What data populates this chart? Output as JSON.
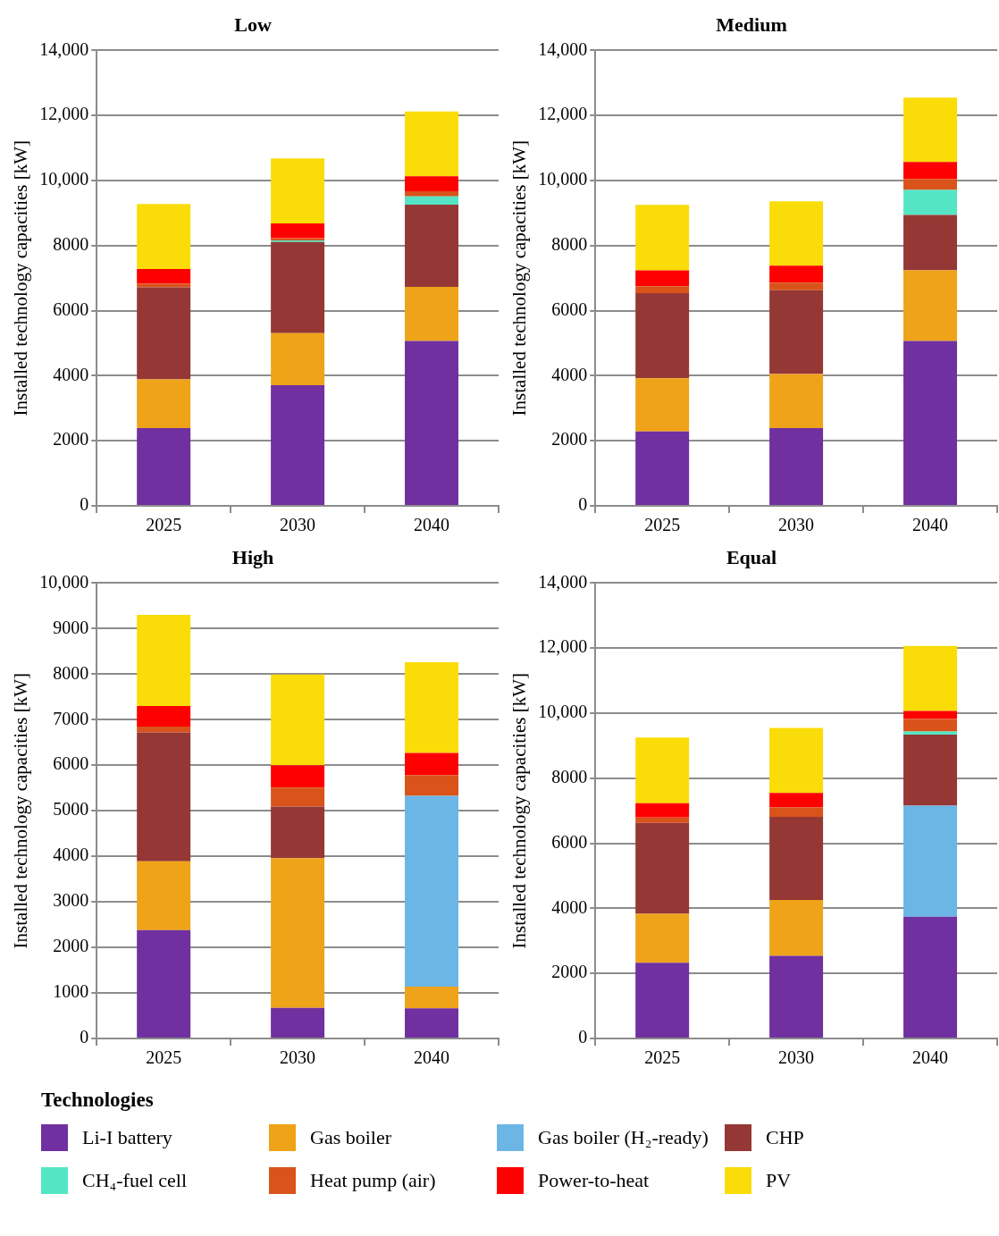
{
  "chart_data": [
    {
      "type": "bar",
      "title": "Low",
      "ylabel": "Installed technology capacities [kW]",
      "categories": [
        "2025",
        "2030",
        "2040"
      ],
      "stacked": true,
      "grid": "y",
      "legend": "bottom",
      "legend_title": "Technologies",
      "ylim": [
        0,
        14000
      ],
      "yticks": [
        0,
        2000,
        4000,
        6000,
        8000,
        {
          "value": 10000,
          "label": "10,000"
        },
        {
          "value": 12000,
          "label": "12,000"
        },
        {
          "value": 14000,
          "label": "14,000"
        }
      ],
      "series": [
        {
          "name": "Li-I battery",
          "color": "#7030a0",
          "values": [
            2390,
            3710,
            5070
          ]
        },
        {
          "name": "Gas boiler",
          "color": "#efa318",
          "values": [
            1500,
            1600,
            1660
          ]
        },
        {
          "name": "Gas boiler (H₂-ready)",
          "color": "#6cb6e6",
          "values": [
            0,
            0,
            0
          ]
        },
        {
          "name": "CHP",
          "color": "#953735",
          "values": [
            2830,
            2800,
            2530
          ]
        },
        {
          "name": "CH₄-fuel cell",
          "color": "#54e6c4",
          "values": [
            0,
            50,
            250
          ]
        },
        {
          "name": "Heat pump (air)",
          "color": "#d9531a",
          "values": [
            110,
            70,
            160
          ]
        },
        {
          "name": "Power-to-heat",
          "color": "#ff0000",
          "values": [
            450,
            450,
            460
          ]
        },
        {
          "name": "PV",
          "color": "#fadc08",
          "values": [
            2000,
            2000,
            1990
          ]
        }
      ]
    },
    {
      "type": "bar",
      "title": "Medium",
      "ylabel": "Installed technology capacities [kW]",
      "categories": [
        "2025",
        "2030",
        "2040"
      ],
      "stacked": true,
      "grid": "y",
      "ylim": [
        0,
        14000
      ],
      "yticks": [
        0,
        2000,
        4000,
        6000,
        8000,
        {
          "value": 10000,
          "label": "10,000"
        },
        {
          "value": 12000,
          "label": "12,000"
        },
        {
          "value": 14000,
          "label": "14,000"
        }
      ],
      "series": [
        {
          "color": "#7030a0",
          "values": [
            2290,
            2390,
            5070
          ]
        },
        {
          "color": "#efa318",
          "values": [
            1630,
            1660,
            2170
          ]
        },
        {
          "color": "#6cb6e6",
          "values": [
            0,
            0,
            0
          ]
        },
        {
          "color": "#953735",
          "values": [
            2620,
            2580,
            1700
          ]
        },
        {
          "color": "#54e6c4",
          "values": [
            0,
            0,
            770
          ]
        },
        {
          "color": "#d9531a",
          "values": [
            210,
            230,
            340
          ]
        },
        {
          "color": "#ff0000",
          "values": [
            490,
            520,
            520
          ]
        },
        {
          "color": "#fadc08",
          "values": [
            2010,
            1980,
            1980
          ]
        }
      ]
    },
    {
      "type": "bar",
      "title": "High",
      "ylabel": "Installed technology capacities [kW]",
      "categories": [
        "2025",
        "2030",
        "2040"
      ],
      "stacked": true,
      "grid": "y",
      "ylim": [
        0,
        10000
      ],
      "yticks": [
        0,
        1000,
        2000,
        3000,
        4000,
        5000,
        6000,
        7000,
        8000,
        9000,
        {
          "value": 10000,
          "label": "10,000"
        }
      ],
      "series": [
        {
          "color": "#7030a0",
          "values": [
            2380,
            670,
            660
          ]
        },
        {
          "color": "#efa318",
          "values": [
            1510,
            3290,
            480
          ]
        },
        {
          "color": "#6cb6e6",
          "values": [
            0,
            0,
            4190
          ]
        },
        {
          "color": "#953735",
          "values": [
            2830,
            1130,
            0
          ]
        },
        {
          "color": "#54e6c4",
          "values": [
            0,
            0,
            0
          ]
        },
        {
          "color": "#d9531a",
          "values": [
            130,
            420,
            450
          ]
        },
        {
          "color": "#ff0000",
          "values": [
            450,
            490,
            490
          ]
        },
        {
          "color": "#fadc08",
          "values": [
            2000,
            1990,
            1990
          ]
        }
      ]
    },
    {
      "type": "bar",
      "title": "Equal",
      "ylabel": "Installed technology capacities [kW]",
      "categories": [
        "2025",
        "2030",
        "2040"
      ],
      "stacked": true,
      "grid": "y",
      "ylim": [
        0,
        14000
      ],
      "yticks": [
        0,
        2000,
        4000,
        6000,
        8000,
        {
          "value": 10000,
          "label": "10,000"
        },
        {
          "value": 12000,
          "label": "12,000"
        },
        {
          "value": 14000,
          "label": "14,000"
        }
      ],
      "series": [
        {
          "color": "#7030a0",
          "values": [
            2330,
            2540,
            3740
          ]
        },
        {
          "color": "#efa318",
          "values": [
            1500,
            1720,
            0
          ]
        },
        {
          "color": "#6cb6e6",
          "values": [
            0,
            0,
            3420
          ]
        },
        {
          "color": "#953735",
          "values": [
            2800,
            2550,
            2180
          ]
        },
        {
          "color": "#54e6c4",
          "values": [
            0,
            0,
            100
          ]
        },
        {
          "color": "#d9531a",
          "values": [
            160,
            290,
            380
          ]
        },
        {
          "color": "#ff0000",
          "values": [
            440,
            450,
            250
          ]
        },
        {
          "color": "#fadc08",
          "values": [
            2020,
            2000,
            2000
          ]
        }
      ]
    }
  ]
}
